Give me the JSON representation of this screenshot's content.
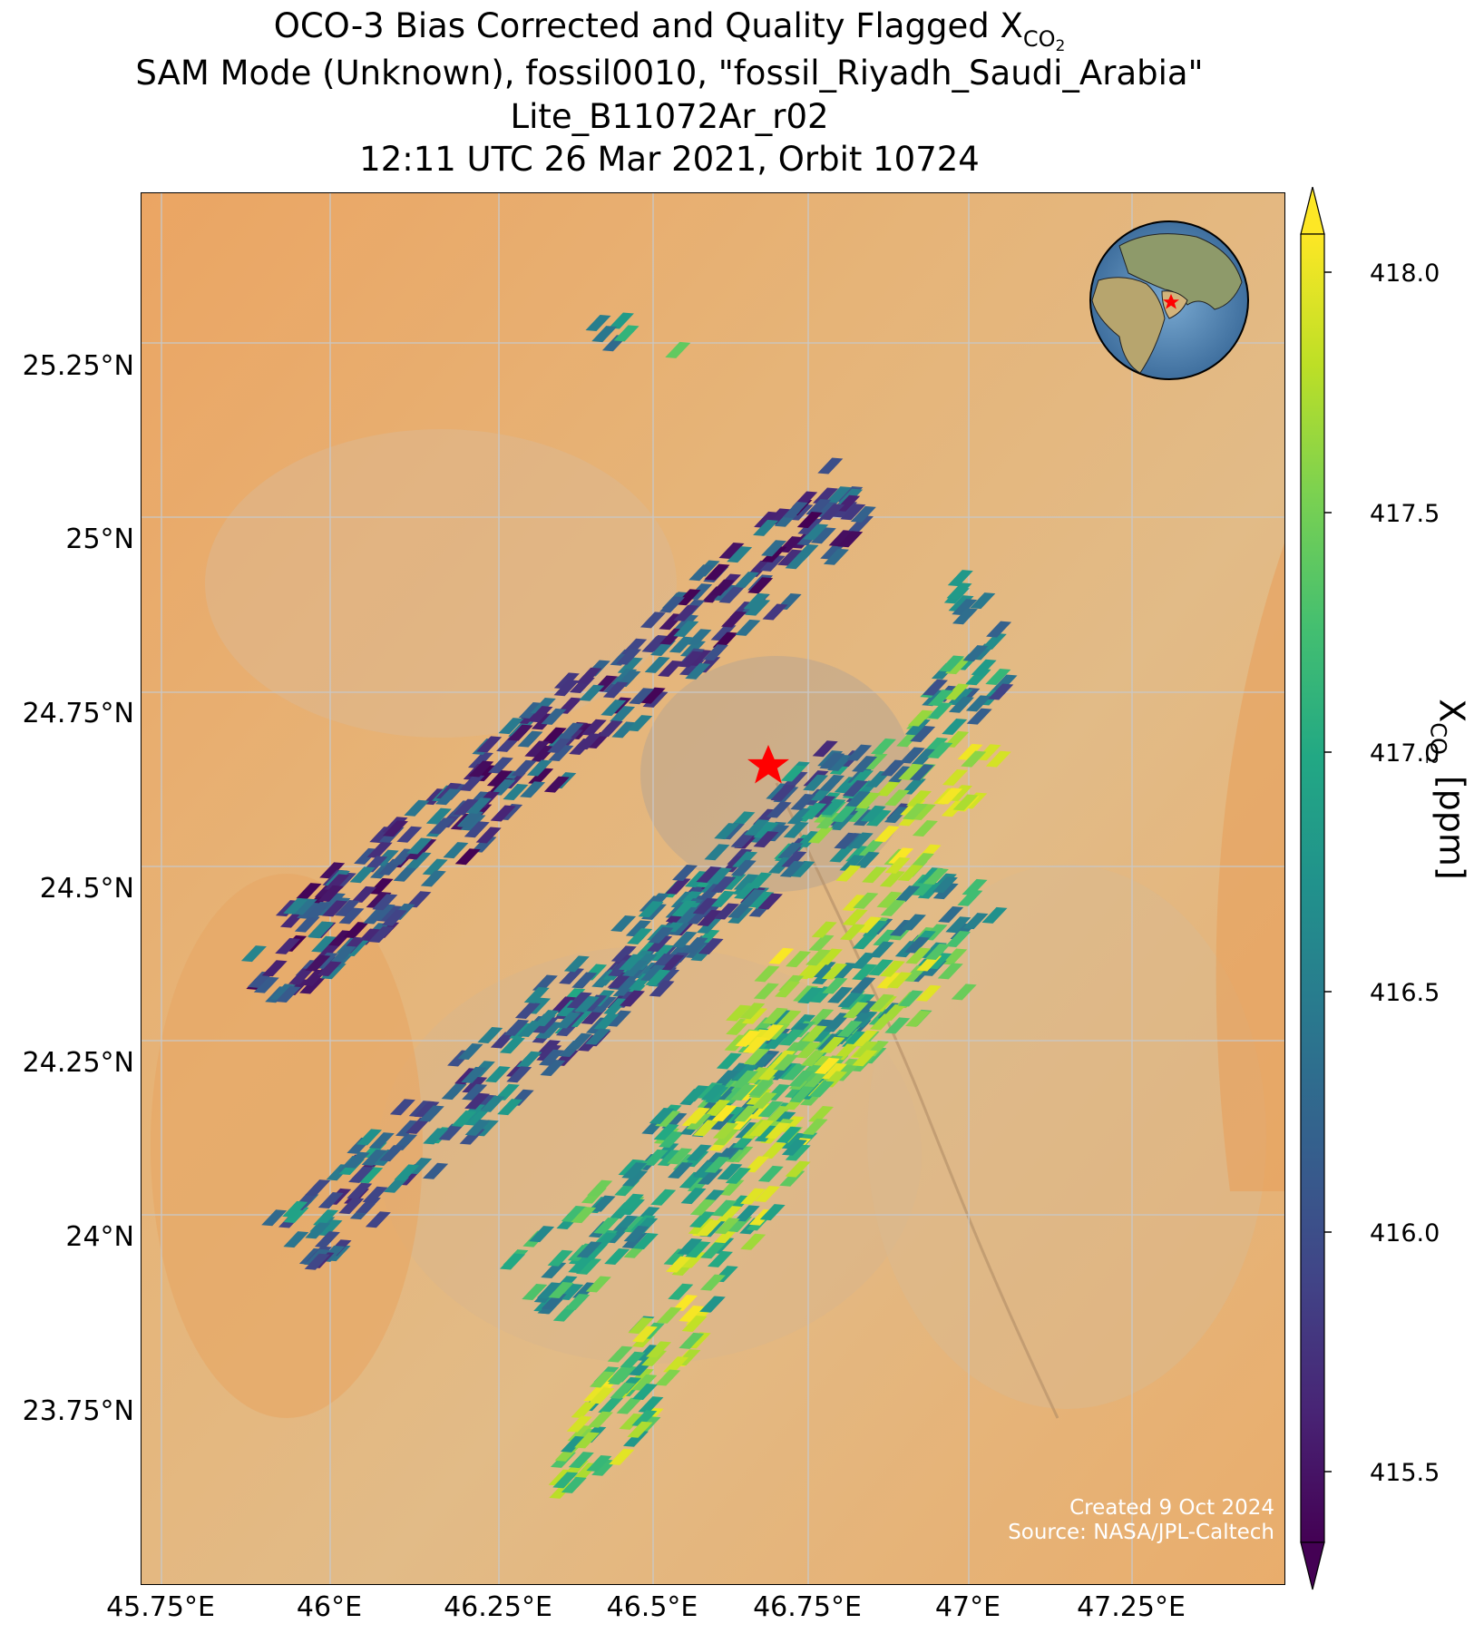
{
  "title": {
    "line1_main": "OCO-3 Bias Corrected and Quality Flagged X",
    "line1_sub": "CO",
    "line1_sub2": "2",
    "line2": "SAM Mode (Unknown), fossil0010, \"fossil_Riyadh_Saudi_Arabia\"",
    "line3": "Lite_B11072Ar_r02",
    "line4": "12:11 UTC 26 Mar 2021, Orbit 10724"
  },
  "map": {
    "lat_ticks": [
      "25.25°N",
      "25°N",
      "24.75°N",
      "24.5°N",
      "24.25°N",
      "24°N",
      "23.75°N"
    ],
    "lon_ticks": [
      "45.75°E",
      "46°E",
      "46.25°E",
      "46.5°E",
      "46.75°E",
      "47°E",
      "47.25°E"
    ],
    "target_marker_color": "#ff0000",
    "credit_line1": "Created 9 Oct 2024",
    "credit_line2": "Source: NASA/JPL-Caltech",
    "inset_globe": "globe-centered-on-arabia",
    "background": "satellite-desert-imagery"
  },
  "colorbar": {
    "colormap": "viridis",
    "ticks": [
      "418.0",
      "417.5",
      "417.0",
      "416.5",
      "416.0",
      "415.5"
    ],
    "range": [
      415.3,
      418.1
    ],
    "extend": "both",
    "label_main": "X",
    "label_sub": "CO",
    "label_sub2": "2",
    "label_unit": "[ppm]"
  },
  "colors": {
    "viridis_low": "#440154",
    "viridis_mid": "#21918c",
    "viridis_high": "#fde725",
    "target": "#ff0000"
  }
}
